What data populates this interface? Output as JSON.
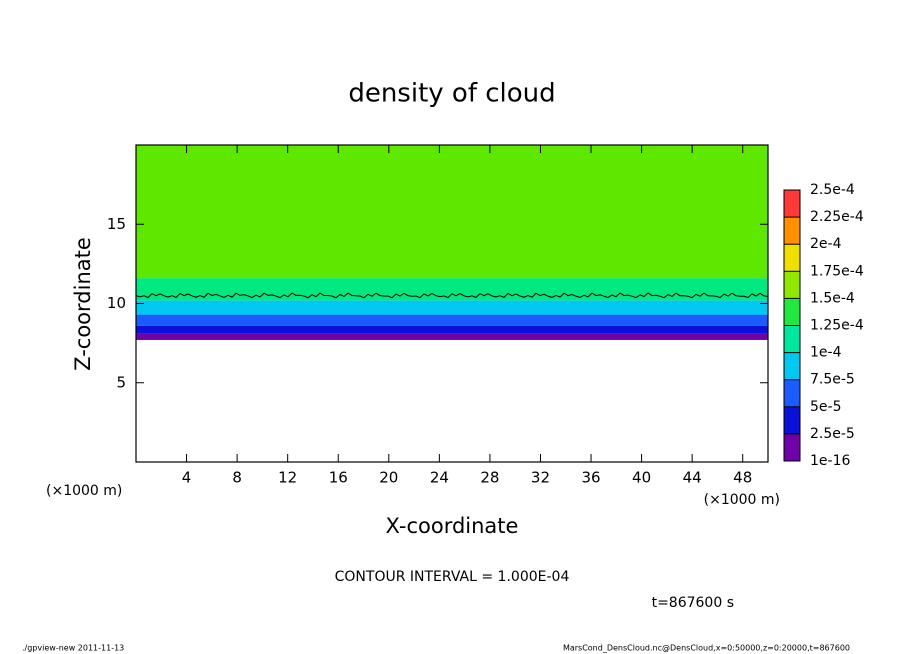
{
  "chart_data": {
    "type": "contour",
    "title": "density of cloud",
    "xlabel": "X-coordinate",
    "ylabel": "Z-coordinate",
    "x_unit_left": "(×1000 m)",
    "x_unit_right": "(×1000 m)",
    "xlim": [
      0,
      50
    ],
    "ylim": [
      0,
      20
    ],
    "xticks": [
      4,
      8,
      12,
      16,
      20,
      24,
      28,
      32,
      36,
      40,
      44,
      48
    ],
    "yticks": [
      5,
      10,
      15
    ],
    "colorbar": {
      "levels": [
        {
          "value": 1e-16,
          "label": "1e-16"
        },
        {
          "value": 2.5e-05,
          "label": "2.5e-5"
        },
        {
          "value": 5e-05,
          "label": "5e-5"
        },
        {
          "value": 7.5e-05,
          "label": "7.5e-5"
        },
        {
          "value": 0.0001,
          "label": "1e-4"
        },
        {
          "value": 0.000125,
          "label": "1.25e-4"
        },
        {
          "value": 0.00015,
          "label": "1.5e-4"
        },
        {
          "value": 0.000175,
          "label": "1.75e-4"
        },
        {
          "value": 0.0002,
          "label": "2e-4"
        },
        {
          "value": 0.000225,
          "label": "2.25e-4"
        },
        {
          "value": 0.00025,
          "label": "2.5e-4"
        }
      ],
      "colors": [
        "#7000a8",
        "#0a10d8",
        "#1a5cff",
        "#00c8f0",
        "#00e8a0",
        "#20e840",
        "#90e800",
        "#f0e000",
        "#ff9000",
        "#ff3838"
      ]
    },
    "bands": [
      {
        "z": [
          7.7,
          8.1
        ],
        "color": "#7000a8"
      },
      {
        "z": [
          8.1,
          8.6
        ],
        "color": "#0a10d8"
      },
      {
        "z": [
          8.6,
          9.3
        ],
        "color": "#1a5cff"
      },
      {
        "z": [
          9.3,
          10.2
        ],
        "color": "#00c8f0"
      },
      {
        "z": [
          10.2,
          11.6
        ],
        "color": "#00e880"
      },
      {
        "z": [
          11.6,
          20
        ],
        "color": "#5ee800"
      }
    ],
    "contour": {
      "value": 0.0001,
      "z": 10.5
    },
    "annotation": "CONTOUR INTERVAL = 1.000E-04",
    "time_label": "t=867600 s",
    "footer_left": "./gpview-new  2011-11-13",
    "footer_right": "MarsCond_DensCloud.nc@DensCloud,x=0:50000,z=0:20000,t=867600"
  }
}
